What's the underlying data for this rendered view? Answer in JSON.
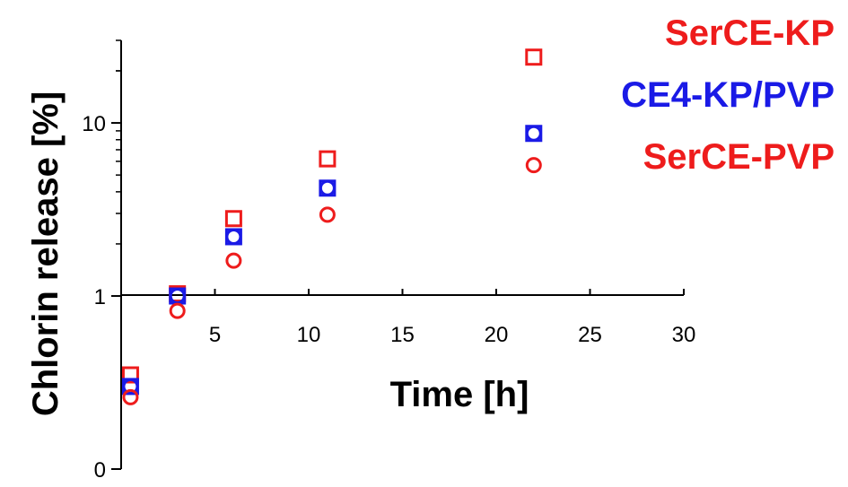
{
  "chart_data": {
    "type": "scatter",
    "xlabel": "Time [h]",
    "ylabel": "Chlorin release [%]",
    "x_ticks": [
      5,
      10,
      15,
      20,
      25,
      30
    ],
    "x_tick_labels": [
      "5",
      "10",
      "15",
      "20",
      "25",
      "30"
    ],
    "y_scale": "log",
    "y_ticks": [
      {
        "value": 0.1,
        "label": "0"
      },
      {
        "value": 1,
        "label": "1"
      },
      {
        "value": 10,
        "label": "10"
      }
    ],
    "xlim": [
      0,
      30
    ],
    "ylim": [
      0.1,
      30
    ],
    "grid": false,
    "legend_position": "top-right",
    "series": [
      {
        "name": "SerCE-KP",
        "marker": "square",
        "color": "#ee1c1c",
        "x": [
          0.5,
          3,
          6,
          11,
          22
        ],
        "y": [
          0.35,
          1.03,
          2.8,
          6.2,
          24
        ]
      },
      {
        "name": "CE4-KP/PVP",
        "marker": "mixed",
        "color": "#1a1ae6",
        "x": [
          0.5,
          3,
          6,
          11,
          22
        ],
        "y": [
          0.3,
          1.0,
          2.2,
          4.2,
          8.7
        ]
      },
      {
        "name": "SerCE-PVP",
        "marker": "circle",
        "color": "#ee1c1c",
        "x": [
          0.5,
          3,
          6,
          11,
          22
        ],
        "y": [
          0.26,
          0.82,
          1.6,
          2.95,
          5.7
        ]
      }
    ]
  }
}
